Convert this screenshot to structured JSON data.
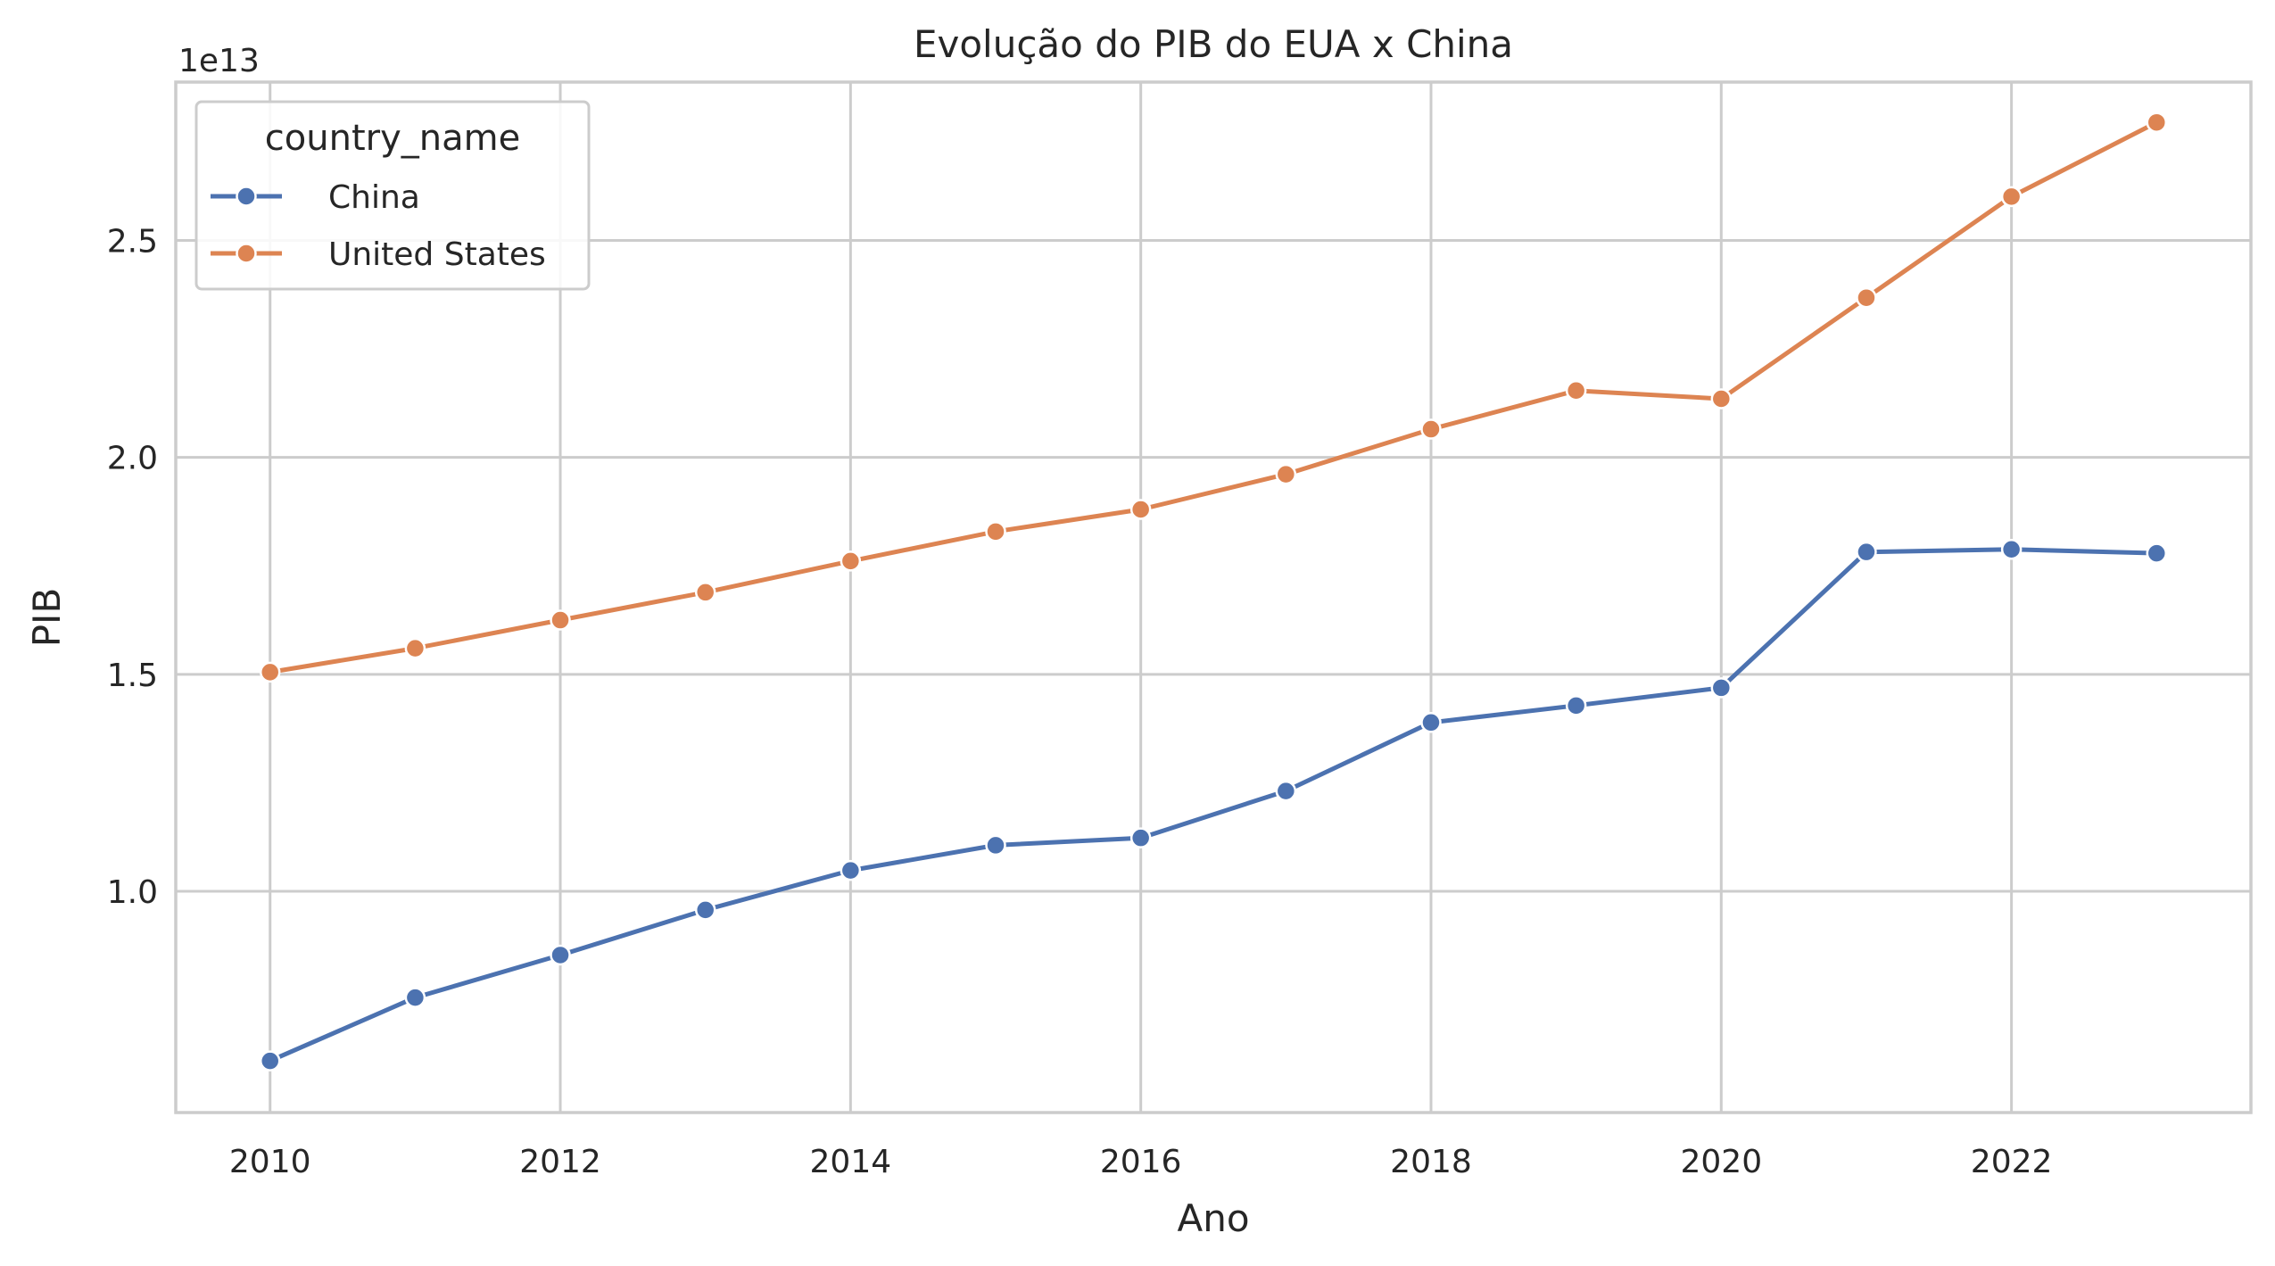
{
  "chart_data": {
    "type": "line",
    "title": "Evolução do PIB do EUA x China",
    "xlabel": "Ano",
    "ylabel": "PIB",
    "y_offset_label": "1e13",
    "xlim": [
      2009.35,
      2023.65
    ],
    "ylim": [
      0.49,
      2.865
    ],
    "x_ticks": [
      2010,
      2012,
      2014,
      2016,
      2018,
      2020,
      2022
    ],
    "x_tick_labels": [
      "2010",
      "2012",
      "2014",
      "2016",
      "2018",
      "2020",
      "2022"
    ],
    "y_ticks": [
      1.0,
      1.5,
      2.0,
      2.5
    ],
    "y_tick_labels": [
      "1.0",
      "1.5",
      "2.0",
      "2.5"
    ],
    "grid": true,
    "legend": {
      "title": "country_name",
      "position": "top-left"
    },
    "x": [
      2010,
      2011,
      2012,
      2013,
      2014,
      2015,
      2016,
      2017,
      2018,
      2019,
      2020,
      2021,
      2022,
      2023
    ],
    "series": [
      {
        "name": "China",
        "color": "#4c72b0",
        "values": [
          0.609,
          0.755,
          0.853,
          0.957,
          1.048,
          1.106,
          1.123,
          1.231,
          1.389,
          1.428,
          1.469,
          1.782,
          1.788,
          1.779
        ]
      },
      {
        "name": "United States",
        "color": "#dd8452",
        "values": [
          1.505,
          1.56,
          1.625,
          1.689,
          1.761,
          1.829,
          1.88,
          1.961,
          2.065,
          2.154,
          2.135,
          2.368,
          2.601,
          2.772
        ]
      }
    ]
  }
}
